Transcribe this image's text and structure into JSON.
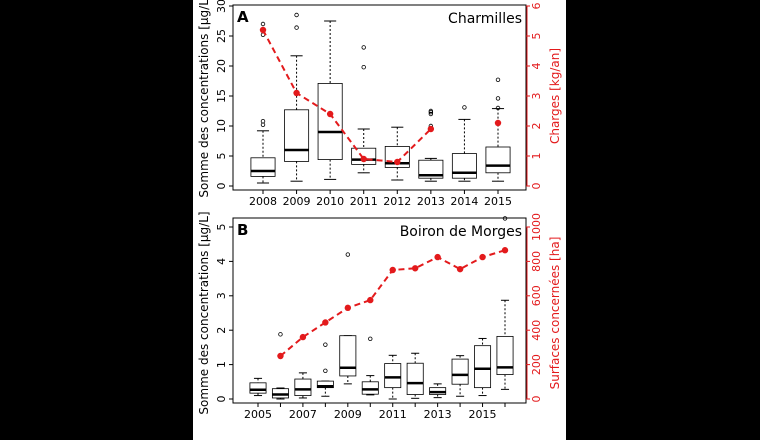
{
  "chart_data": [
    {
      "type": "box",
      "panel_label": "A",
      "title": "Charmilles",
      "ylabel": "Somme des concentrations [µg/L]",
      "y2label": "Charges [kg/an]",
      "ylim": [
        0,
        30
      ],
      "y2lim": [
        0,
        6
      ],
      "yticks": [
        0,
        5,
        10,
        15,
        20,
        25,
        30
      ],
      "y2ticks": [
        0,
        1,
        2,
        3,
        4,
        5,
        6
      ],
      "categories": [
        "2008",
        "2009",
        "2010",
        "2011",
        "2012",
        "2013",
        "2014",
        "2015"
      ],
      "xtick_labels": [
        "2008",
        "2009",
        "2010",
        "2011",
        "2012",
        "2013",
        "2014",
        "2015"
      ],
      "boxes": [
        {
          "low": 0.5,
          "q1": 1.6,
          "median": 2.5,
          "q3": 4.7,
          "high": 9.2,
          "outliers": [
            10.2,
            10.8,
            25.2,
            27
          ]
        },
        {
          "low": 0.8,
          "q1": 4.1,
          "median": 6.0,
          "q3": 12.7,
          "high": 21.7,
          "outliers": [
            26.4,
            28.5
          ]
        },
        {
          "low": 1.1,
          "q1": 4.4,
          "median": 9.0,
          "q3": 17.1,
          "high": 27.5,
          "outliers": []
        },
        {
          "low": 2.2,
          "q1": 3.6,
          "median": 4.4,
          "q3": 6.3,
          "high": 9.5,
          "outliers": [
            19.8,
            23.1
          ]
        },
        {
          "low": 1.0,
          "q1": 3.1,
          "median": 3.8,
          "q3": 6.6,
          "high": 9.8,
          "outliers": []
        },
        {
          "low": 0.8,
          "q1": 1.3,
          "median": 1.8,
          "q3": 4.3,
          "high": 4.6,
          "outliers": [
            10.0,
            12.0,
            12.3,
            12.5
          ]
        },
        {
          "low": 0.8,
          "q1": 1.3,
          "median": 2.2,
          "q3": 5.4,
          "high": 11.1,
          "outliers": [
            13.1
          ]
        },
        {
          "low": 0.8,
          "q1": 2.2,
          "median": 3.4,
          "q3": 6.5,
          "high": 12.9,
          "outliers": [
            13.0,
            14.6,
            17.7
          ]
        }
      ],
      "series2": {
        "values": [
          5.2,
          3.1,
          2.4,
          0.9,
          0.8,
          1.9,
          null,
          2.1
        ],
        "color": "#e31a1c"
      }
    },
    {
      "type": "box",
      "panel_label": "B",
      "title": "Boiron de Morges",
      "ylabel": "Somme des concentrations [µg/L]",
      "y2label": "Surfaces concernées [ha]",
      "ylim": [
        0,
        5
      ],
      "y2lim": [
        0,
        1000
      ],
      "yticks": [
        0,
        1,
        2,
        3,
        4,
        5
      ],
      "y2ticks": [
        0,
        200,
        400,
        600,
        800,
        1000
      ],
      "categories": [
        "2005",
        "2006",
        "2007",
        "2008",
        "2009",
        "2010",
        "2011",
        "2012",
        "2013",
        "2014",
        "2015",
        "2016"
      ],
      "xtick_labels": [
        "2005",
        "",
        "2007",
        "",
        "2009",
        "",
        "2011",
        "",
        "2013",
        "",
        "2015",
        ""
      ],
      "boxes": [
        {
          "low": 0.1,
          "q1": 0.17,
          "median": 0.27,
          "q3": 0.47,
          "high": 0.6,
          "outliers": []
        },
        {
          "low": 0.0,
          "q1": 0.03,
          "median": 0.13,
          "q3": 0.3,
          "high": 0.32,
          "outliers": [
            1.88
          ]
        },
        {
          "low": 0.03,
          "q1": 0.1,
          "median": 0.28,
          "q3": 0.58,
          "high": 0.76,
          "outliers": []
        },
        {
          "low": 0.08,
          "q1": 0.33,
          "median": 0.37,
          "q3": 0.52,
          "high": 0.52,
          "outliers": [
            0.82,
            1.58
          ]
        },
        {
          "low": 0.44,
          "q1": 0.67,
          "median": 0.91,
          "q3": 1.84,
          "high": 1.84,
          "outliers": [
            4.2
          ]
        },
        {
          "low": 0.12,
          "q1": 0.14,
          "median": 0.28,
          "q3": 0.5,
          "high": 0.68,
          "outliers": [
            1.75
          ]
        },
        {
          "low": 0.0,
          "q1": 0.33,
          "median": 0.63,
          "q3": 1.03,
          "high": 1.27,
          "outliers": []
        },
        {
          "low": 0.02,
          "q1": 0.13,
          "median": 0.46,
          "q3": 1.04,
          "high": 1.33,
          "outliers": []
        },
        {
          "low": 0.04,
          "q1": 0.13,
          "median": 0.2,
          "q3": 0.33,
          "high": 0.44,
          "outliers": []
        },
        {
          "low": 0.08,
          "q1": 0.43,
          "median": 0.7,
          "q3": 1.16,
          "high": 1.26,
          "outliers": []
        },
        {
          "low": 0.1,
          "q1": 0.33,
          "median": 0.88,
          "q3": 1.55,
          "high": 1.76,
          "outliers": []
        },
        {
          "low": 0.28,
          "q1": 0.71,
          "median": 0.92,
          "q3": 1.82,
          "high": 2.87,
          "outliers": [
            5.25
          ]
        }
      ],
      "series2": {
        "values": [
          null,
          250,
          360,
          445,
          530,
          575,
          750,
          760,
          825,
          755,
          825,
          865
        ],
        "color": "#e31a1c"
      }
    }
  ]
}
